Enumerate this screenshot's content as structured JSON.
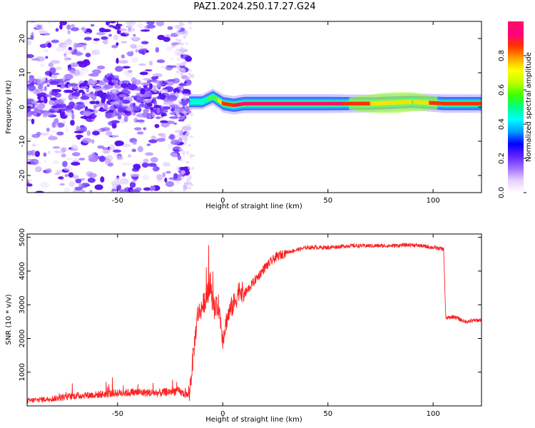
{
  "title": "PAZ1.2024.250.17.27.G24",
  "chart_data": [
    {
      "type": "heatmap",
      "xlabel": "Height of straight line (km)",
      "ylabel": "Frequency (Hz)",
      "xlim": [
        -93,
        123
      ],
      "ylim": [
        -25,
        25
      ],
      "xticks": [
        -50,
        0,
        50,
        100
      ],
      "yticks": [
        -20,
        -10,
        0,
        10,
        20
      ],
      "colorbar": {
        "label": "Normalized spectral amplitude",
        "range": [
          0,
          1
        ],
        "ticks": [
          "0.0",
          "0.2",
          "0.4",
          "0.6",
          "0.8"
        ],
        "colors": [
          "#ffffff",
          "#e6d0ff",
          "#a070ff",
          "#6020ff",
          "#0000ff",
          "#00a0ff",
          "#00ffff",
          "#00ff80",
          "#40ff00",
          "#c0ff00",
          "#ffff00",
          "#ffa000",
          "#ff3000",
          "#ff0080",
          "#ff1060"
        ]
      },
      "ridge": {
        "description": "dominant signal near 1 Hz from ~-15 km upward",
        "x": [
          -16,
          -10,
          -5,
          0,
          5,
          10,
          30,
          50,
          70,
          90,
          105,
          123
        ],
        "freq": [
          1.5,
          1.5,
          3,
          1,
          0.5,
          1,
          1,
          1,
          1,
          1.5,
          1,
          1
        ],
        "amplitude": [
          0.45,
          0.5,
          0.6,
          0.85,
          0.9,
          0.95,
          0.95,
          0.95,
          0.8,
          0.7,
          0.9,
          0.9
        ]
      },
      "scatter_region": {
        "x": [
          -93,
          -16
        ],
        "freq": [
          -25,
          25
        ],
        "amplitude_range": [
          0.05,
          0.25
        ]
      }
    },
    {
      "type": "line",
      "xlabel": "Height of straight line (km)",
      "ylabel": "SNR (10 * v/v)",
      "xlim": [
        -93,
        123
      ],
      "ylim": [
        0,
        5100
      ],
      "xticks": [
        -50,
        0,
        50,
        100
      ],
      "yticks": [
        1000,
        2000,
        3000,
        4000,
        5000
      ],
      "color": "#ff2020",
      "series": [
        {
          "x": [
            -93,
            -80,
            -70,
            -60,
            -50,
            -40,
            -30,
            -22,
            -16,
            -14,
            -12,
            -10,
            -8,
            -6,
            -4,
            -2,
            0,
            2,
            4,
            6,
            8,
            10,
            15,
            20,
            25,
            30,
            40,
            50,
            60,
            70,
            80,
            90,
            100,
            105,
            106,
            110,
            115,
            123
          ],
          "y": [
            150,
            220,
            300,
            330,
            380,
            400,
            380,
            450,
            300,
            1500,
            2700,
            2900,
            3200,
            3500,
            2800,
            3000,
            2000,
            2600,
            2900,
            3100,
            3500,
            3300,
            3700,
            4100,
            4400,
            4550,
            4700,
            4700,
            4750,
            4750,
            4750,
            4780,
            4700,
            4650,
            2600,
            2650,
            2500,
            2550
          ]
        }
      ]
    }
  ]
}
